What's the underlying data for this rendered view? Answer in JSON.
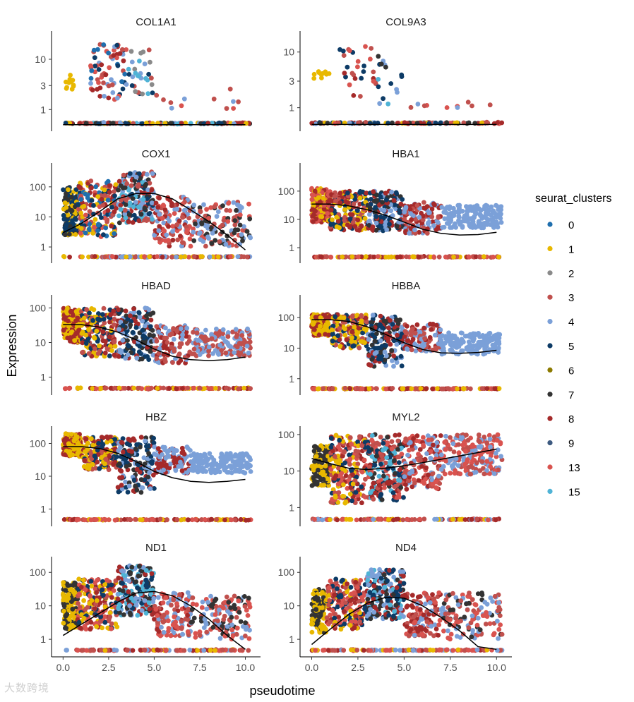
{
  "chart_data": {
    "type": "scatter",
    "layout": "facet grid, 5 rows x 2 columns",
    "xlabel": "pseudotime",
    "ylabel": "Expression",
    "x_ticks": [
      "0.0",
      "2.5",
      "5.0",
      "7.5",
      "10.0"
    ],
    "x_tick_values": [
      0,
      2.5,
      5,
      7.5,
      10
    ],
    "xlim": [
      -0.4,
      10.6
    ],
    "y_scale": "log10",
    "legend": {
      "title": "seurat_clusters",
      "placement": "right",
      "clusters": [
        {
          "label": "0",
          "color": "#1f6fae"
        },
        {
          "label": "1",
          "color": "#e8b800"
        },
        {
          "label": "2",
          "color": "#8a8a8a"
        },
        {
          "label": "3",
          "color": "#c0504d"
        },
        {
          "label": "4",
          "color": "#7ba0d8"
        },
        {
          "label": "5",
          "color": "#0d3b66"
        },
        {
          "label": "6",
          "color": "#8c7a00"
        },
        {
          "label": "7",
          "color": "#333333"
        },
        {
          "label": "8",
          "color": "#a52a2a"
        },
        {
          "label": "9",
          "color": "#3d5a80"
        },
        {
          "label": "13",
          "color": "#d9534f"
        },
        {
          "label": "15",
          "color": "#4fb3d6"
        }
      ]
    },
    "panels": [
      {
        "title": "COL1A1",
        "y_ticks": [
          "1",
          "3",
          "10"
        ],
        "y_tick_values": [
          1,
          3,
          10
        ],
        "ylim": [
          0.45,
          30
        ],
        "trend": [
          [
            0,
            0.5
          ],
          [
            2,
            0.5
          ],
          [
            4,
            0.5
          ],
          [
            6,
            0.5
          ],
          [
            8,
            0.5
          ],
          [
            10,
            0.5
          ]
        ]
      },
      {
        "title": "COL9A3",
        "y_ticks": [
          "1",
          "3",
          "10"
        ],
        "y_tick_values": [
          1,
          3,
          10
        ],
        "ylim": [
          0.45,
          20
        ],
        "trend": [
          [
            0,
            0.5
          ],
          [
            2,
            0.5
          ],
          [
            4,
            0.5
          ],
          [
            6,
            0.5
          ],
          [
            8,
            0.5
          ],
          [
            10,
            0.5
          ]
        ]
      },
      {
        "title": "COX1",
        "y_ticks": [
          "1",
          "10",
          "100"
        ],
        "y_tick_values": [
          1,
          10,
          100
        ],
        "ylim": [
          0.4,
          450
        ],
        "trend": [
          [
            0,
            3
          ],
          [
            1,
            6
          ],
          [
            2,
            15
          ],
          [
            3,
            40
          ],
          [
            4,
            60
          ],
          [
            5,
            60
          ],
          [
            6,
            40
          ],
          [
            7,
            17
          ],
          [
            8,
            7
          ],
          [
            9,
            2.5
          ],
          [
            10,
            0.8
          ]
        ]
      },
      {
        "title": "HBA1",
        "y_ticks": [
          "1",
          "10",
          "100"
        ],
        "y_tick_values": [
          1,
          10,
          100
        ],
        "ylim": [
          0.4,
          700
        ],
        "trend": [
          [
            0,
            35
          ],
          [
            1,
            35
          ],
          [
            2,
            30
          ],
          [
            3,
            22
          ],
          [
            4,
            14
          ],
          [
            5,
            8
          ],
          [
            6,
            4.5
          ],
          [
            7,
            3.2
          ],
          [
            8,
            2.8
          ],
          [
            9,
            2.9
          ],
          [
            10,
            3.5
          ]
        ]
      },
      {
        "title": "HBAD",
        "y_ticks": [
          "1",
          "10",
          "100"
        ],
        "y_tick_values": [
          1,
          10,
          100
        ],
        "ylim": [
          0.4,
          180
        ],
        "trend": [
          [
            0,
            33
          ],
          [
            1,
            33
          ],
          [
            2,
            28
          ],
          [
            3,
            20
          ],
          [
            4,
            12
          ],
          [
            5,
            6.5
          ],
          [
            6,
            4
          ],
          [
            7,
            3.2
          ],
          [
            8,
            3
          ],
          [
            9,
            3.2
          ],
          [
            10,
            3.8
          ]
        ]
      },
      {
        "title": "HBBA",
        "y_ticks": [
          "1",
          "10",
          "100"
        ],
        "y_tick_values": [
          1,
          10,
          100
        ],
        "ylim": [
          0.4,
          400
        ],
        "trend": [
          [
            0,
            85
          ],
          [
            1,
            85
          ],
          [
            2,
            75
          ],
          [
            3,
            50
          ],
          [
            4,
            28
          ],
          [
            5,
            15
          ],
          [
            6,
            9
          ],
          [
            7,
            7
          ],
          [
            8,
            6.8
          ],
          [
            9,
            7.2
          ],
          [
            10,
            8.5
          ]
        ]
      },
      {
        "title": "HBZ",
        "y_ticks": [
          "1",
          "10",
          "100"
        ],
        "y_tick_values": [
          1,
          10,
          100
        ],
        "ylim": [
          0.4,
          250
        ],
        "trend": [
          [
            0,
            80
          ],
          [
            1,
            80
          ],
          [
            2,
            70
          ],
          [
            3,
            50
          ],
          [
            4,
            28
          ],
          [
            5,
            14
          ],
          [
            6,
            9
          ],
          [
            7,
            7
          ],
          [
            8,
            6.5
          ],
          [
            9,
            7
          ],
          [
            10,
            8
          ]
        ]
      },
      {
        "title": "MYL2",
        "y_ticks": [
          "1",
          "10",
          "100"
        ],
        "y_tick_values": [
          1,
          10,
          100
        ],
        "ylim": [
          0.4,
          130
        ],
        "trend": [
          [
            0,
            22
          ],
          [
            1,
            16
          ],
          [
            2,
            12
          ],
          [
            3,
            11
          ],
          [
            4,
            12
          ],
          [
            5,
            14
          ],
          [
            6,
            17
          ],
          [
            7,
            21
          ],
          [
            8,
            26
          ],
          [
            9,
            32
          ],
          [
            10,
            40
          ]
        ]
      },
      {
        "title": "ND1",
        "y_ticks": [
          "1",
          "10",
          "100"
        ],
        "y_tick_values": [
          1,
          10,
          100
        ],
        "ylim": [
          0.4,
          220
        ],
        "trend": [
          [
            0,
            1.3
          ],
          [
            1,
            2.8
          ],
          [
            2,
            6
          ],
          [
            3,
            13
          ],
          [
            4,
            24
          ],
          [
            5,
            27
          ],
          [
            6,
            20
          ],
          [
            7,
            10
          ],
          [
            8,
            4
          ],
          [
            9,
            1.3
          ],
          [
            10,
            0.5
          ]
        ]
      },
      {
        "title": "ND4",
        "y_ticks": [
          "1",
          "10",
          "100"
        ],
        "y_tick_values": [
          1,
          10,
          100
        ],
        "ylim": [
          0.4,
          220
        ],
        "trend": [
          [
            0,
            0.7
          ],
          [
            1,
            2
          ],
          [
            2,
            5.5
          ],
          [
            3,
            12
          ],
          [
            4,
            18
          ],
          [
            5,
            17
          ],
          [
            6,
            10
          ],
          [
            7,
            4.5
          ],
          [
            8,
            1.8
          ],
          [
            9,
            0.6
          ],
          [
            10,
            0.5
          ]
        ]
      }
    ]
  },
  "watermark": "大数跨境"
}
